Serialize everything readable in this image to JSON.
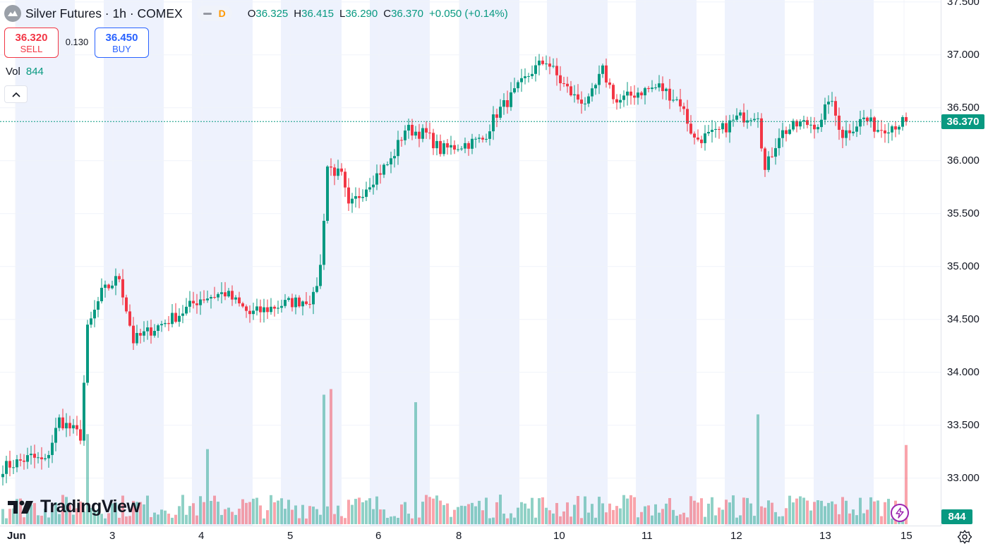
{
  "header": {
    "symbol_title": "Silver Futures · 1h · COMEX",
    "pill_flag": "D",
    "ohlc": [
      {
        "k": "O",
        "v": "36.325"
      },
      {
        "k": "H",
        "v": "36.415"
      },
      {
        "k": "L",
        "v": "36.290"
      },
      {
        "k": "C",
        "v": "36.370"
      }
    ],
    "change": "+0.050 (+0.14%)"
  },
  "trade": {
    "sell_price": "36.320",
    "sell_label": "SELL",
    "spread": "0.130",
    "buy_price": "36.450",
    "buy_label": "BUY"
  },
  "volume_legend": {
    "label": "Vol",
    "value": "844"
  },
  "price_axis": {
    "labels": [
      "37.500",
      "37.000",
      "36.500",
      "36.000",
      "35.500",
      "35.000",
      "34.500",
      "34.000",
      "33.500",
      "33.000"
    ],
    "current_price": "36.370",
    "current_volume": "844"
  },
  "time_axis": {
    "labels": [
      "Jun",
      "3",
      "4",
      "5",
      "6",
      "8",
      "10",
      "11",
      "12",
      "13",
      "15"
    ]
  },
  "logo": {
    "text": "TradingView"
  },
  "colors": {
    "up": "#089981",
    "down": "#f23645",
    "session_band": "#eef2fd",
    "grid": "#f0f3fa"
  },
  "icons": {
    "symbol": "silver-futures-icon",
    "collapse": "chevron-up-icon",
    "bolt": "lightning-icon",
    "settings": "gear-icon"
  },
  "chart_data": {
    "type": "candlestick",
    "title": "Silver Futures · 1h · COMEX",
    "interval": "1h",
    "ylim": [
      32.75,
      37.55
    ],
    "yticks": [
      33.0,
      33.5,
      34.0,
      34.5,
      35.0,
      35.5,
      36.0,
      36.5,
      37.0,
      37.5
    ],
    "x_ticks": [
      "Jun",
      "3",
      "4",
      "5",
      "6",
      "8",
      "10",
      "11",
      "12",
      "13",
      "15"
    ],
    "last_price": 36.37,
    "last_volume": 844,
    "shaded_sessions": [
      "Jun",
      "3",
      "4",
      "5",
      "6",
      "8",
      "10",
      "11",
      "12",
      "13"
    ],
    "close_anchors": [
      [
        0,
        33.1
      ],
      [
        8,
        33.2
      ],
      [
        12,
        33.15
      ],
      [
        16,
        33.55
      ],
      [
        22,
        33.4
      ],
      [
        24,
        34.4
      ],
      [
        28,
        34.75
      ],
      [
        33,
        34.9
      ],
      [
        37,
        34.3
      ],
      [
        42,
        34.4
      ],
      [
        50,
        34.55
      ],
      [
        56,
        34.7
      ],
      [
        63,
        34.75
      ],
      [
        70,
        34.55
      ],
      [
        80,
        34.65
      ],
      [
        88,
        34.7
      ],
      [
        90,
        35.0
      ],
      [
        92,
        35.95
      ],
      [
        96,
        35.85
      ],
      [
        98,
        35.55
      ],
      [
        104,
        35.8
      ],
      [
        110,
        36.0
      ],
      [
        114,
        36.3
      ],
      [
        120,
        36.25
      ],
      [
        124,
        36.1
      ],
      [
        130,
        36.15
      ],
      [
        136,
        36.2
      ],
      [
        140,
        36.45
      ],
      [
        144,
        36.6
      ],
      [
        150,
        36.85
      ],
      [
        154,
        36.95
      ],
      [
        158,
        36.75
      ],
      [
        162,
        36.6
      ],
      [
        166,
        36.55
      ],
      [
        170,
        36.85
      ],
      [
        174,
        36.55
      ],
      [
        180,
        36.65
      ],
      [
        186,
        36.7
      ],
      [
        192,
        36.55
      ],
      [
        196,
        36.2
      ],
      [
        202,
        36.25
      ],
      [
        208,
        36.4
      ],
      [
        214,
        36.45
      ],
      [
        216,
        35.9
      ],
      [
        220,
        36.25
      ],
      [
        226,
        36.35
      ],
      [
        232,
        36.35
      ],
      [
        234,
        36.6
      ],
      [
        238,
        36.25
      ],
      [
        244,
        36.4
      ],
      [
        248,
        36.3
      ],
      [
        256,
        36.37
      ]
    ],
    "volume_spikes": [
      [
        24,
        960
      ],
      [
        58,
        800
      ],
      [
        91,
        1380
      ],
      [
        93,
        1440
      ],
      [
        117,
        1300
      ],
      [
        214,
        1170
      ]
    ]
  }
}
